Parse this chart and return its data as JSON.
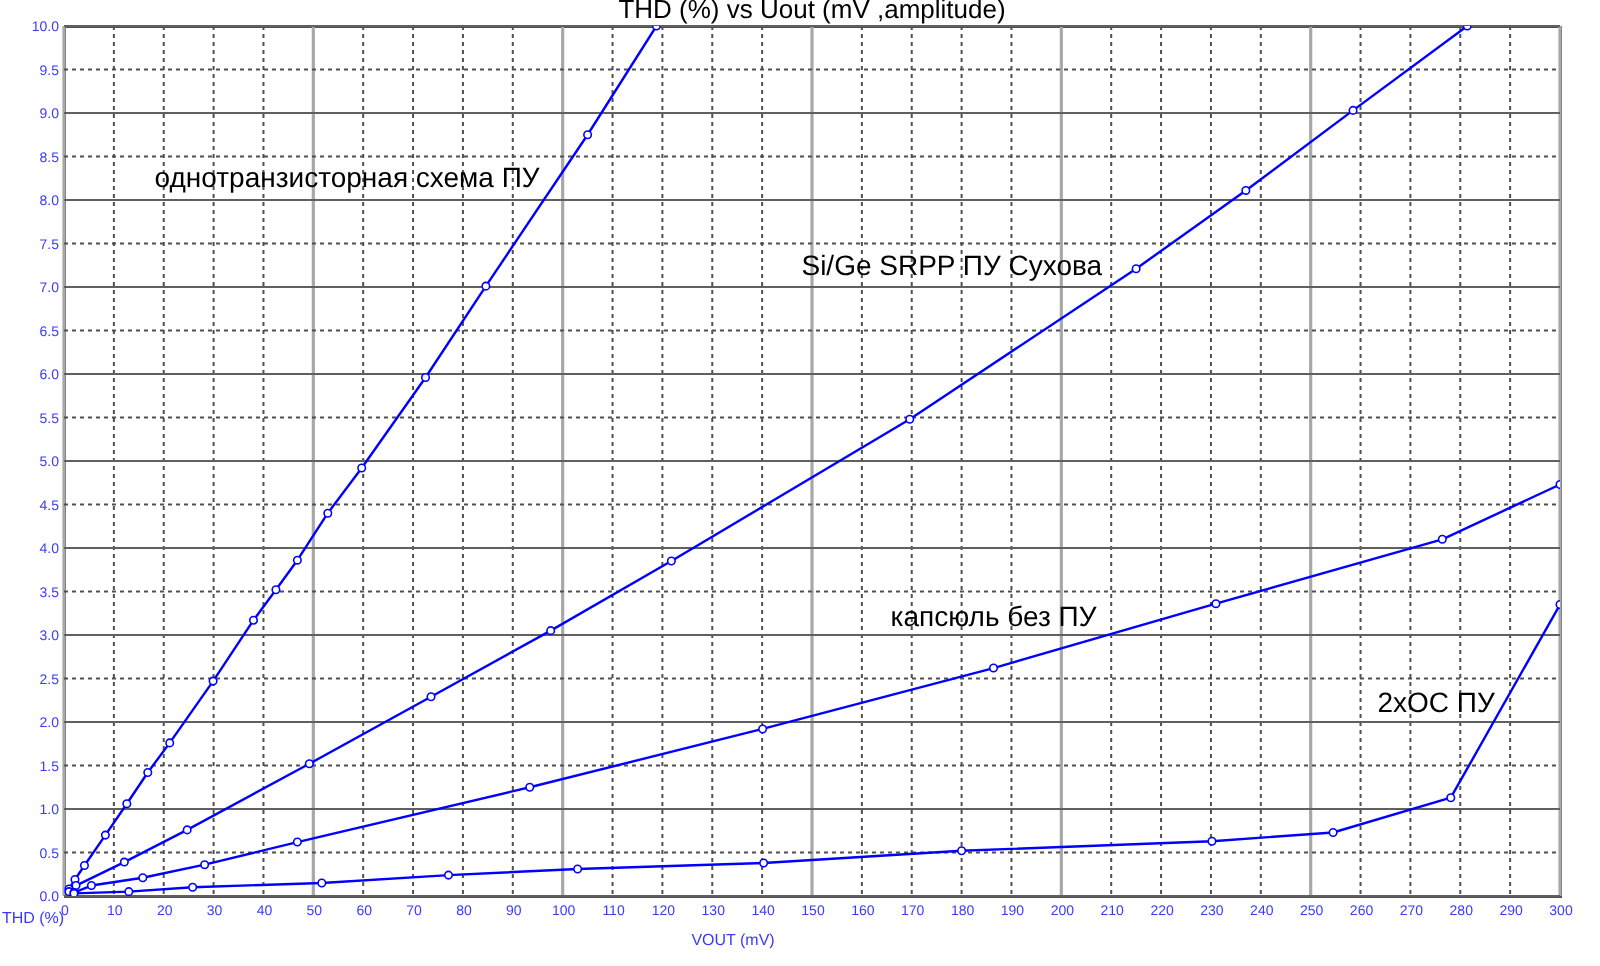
{
  "chart_data": {
    "type": "line",
    "title": "THD (%) vs Uout (mV ,amplitude)",
    "xlabel": "VOUT (mV)",
    "ylabel": "THD (%)",
    "xlim": [
      0,
      300
    ],
    "ylim": [
      0,
      10
    ],
    "xticks": [
      0,
      10,
      20,
      30,
      40,
      50,
      60,
      70,
      80,
      90,
      100,
      110,
      120,
      130,
      140,
      150,
      160,
      170,
      180,
      190,
      200,
      210,
      220,
      230,
      240,
      250,
      260,
      270,
      280,
      290,
      300
    ],
    "yticks": [
      {
        "value": 0,
        "label": "0.0"
      },
      0.5,
      {
        "value": 1,
        "label": "1.0"
      },
      1.5,
      {
        "value": 2,
        "label": "2.0"
      },
      2.5,
      {
        "value": 3,
        "label": "3.0"
      },
      3.5,
      {
        "value": 4,
        "label": "4.0"
      },
      4.5,
      {
        "value": 5,
        "label": "5.0"
      },
      5.5,
      {
        "value": 6,
        "label": "6.0"
      },
      6.5,
      {
        "value": 7,
        "label": "7.0"
      },
      7.5,
      {
        "value": 8,
        "label": "8.0"
      },
      8.5,
      {
        "value": 9,
        "label": "9.0"
      },
      9.5,
      {
        "value": 10,
        "label": "10.0"
      }
    ],
    "grid": true,
    "marker": "circle",
    "series": [
      {
        "name": "однотранзисторная схема ПУ",
        "color": "#0000ff",
        "x": [
          1,
          2.2,
          4.1,
          8.3,
          12.6,
          16.8,
          21.2,
          29.9,
          38,
          42.5,
          46.8,
          52.9,
          59.7,
          72.5,
          84.6,
          105,
          118.8
        ],
        "values": [
          0.08,
          0.19,
          0.35,
          0.7,
          1.06,
          1.42,
          1.76,
          2.47,
          3.17,
          3.52,
          3.86,
          4.4,
          4.92,
          5.96,
          7.01,
          8.75,
          10.0
        ]
      },
      {
        "name": "Si/Ge SRPP ПУ Сухова",
        "color": "#0000ff",
        "x": [
          1,
          2.4,
          12.1,
          24.7,
          49.2,
          73.6,
          97.6,
          121.8,
          169.6,
          215,
          237,
          258.5,
          281.4
        ],
        "values": [
          0.05,
          0.12,
          0.39,
          0.76,
          1.52,
          2.29,
          3.05,
          3.85,
          5.48,
          7.21,
          8.11,
          9.03,
          10.0
        ]
      },
      {
        "name": "капсюль без ПУ",
        "color": "#0000ff",
        "x": [
          2,
          5.5,
          15.8,
          28.2,
          46.8,
          93.4,
          140.1,
          186.4,
          231,
          276.4,
          300
        ],
        "values": [
          0.04,
          0.12,
          0.21,
          0.36,
          0.62,
          1.25,
          1.92,
          2.62,
          3.36,
          4.1,
          4.73
        ]
      },
      {
        "name": "2xOC ПУ",
        "color": "#0000ff",
        "x": [
          2,
          13,
          25.8,
          51.7,
          77.1,
          103,
          140.3,
          180,
          230.2,
          254.5,
          278.1,
          300
        ],
        "values": [
          0.03,
          0.05,
          0.1,
          0.15,
          0.24,
          0.31,
          0.38,
          0.52,
          0.63,
          0.73,
          1.13,
          3.35
        ]
      }
    ]
  }
}
